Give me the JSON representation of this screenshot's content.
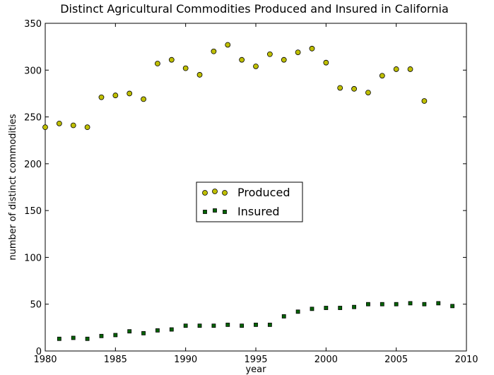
{
  "chart_data": {
    "type": "scatter",
    "title": "Distinct Agricultural Commodities Produced and Insured in California",
    "xlabel": "year",
    "ylabel": "number of distinct commodities",
    "xlim": [
      1980,
      2010
    ],
    "xticks": [
      1980,
      1985,
      1990,
      1995,
      2000,
      2005,
      2010
    ],
    "ylim": [
      0,
      350
    ],
    "yticks": [
      0,
      50,
      100,
      150,
      200,
      250,
      300,
      350
    ],
    "legend": "center",
    "series": [
      {
        "name": "Produced",
        "color": "#bfbf00",
        "marker": "circle",
        "x": [
          1980,
          1981,
          1982,
          1983,
          1984,
          1985,
          1986,
          1987,
          1988,
          1989,
          1990,
          1991,
          1992,
          1993,
          1994,
          1995,
          1996,
          1997,
          1998,
          1999,
          2000,
          2001,
          2002,
          2003,
          2004,
          2005,
          2006,
          2007
        ],
        "values": [
          239,
          243,
          241,
          239,
          271,
          273,
          275,
          269,
          307,
          311,
          302,
          295,
          320,
          327,
          311,
          304,
          317,
          311,
          319,
          323,
          308,
          281,
          280,
          276,
          294,
          301,
          301,
          267
        ]
      },
      {
        "name": "Insured",
        "color": "#006400",
        "marker": "square",
        "x": [
          1981,
          1982,
          1983,
          1984,
          1985,
          1986,
          1987,
          1988,
          1989,
          1990,
          1991,
          1992,
          1993,
          1994,
          1995,
          1996,
          1997,
          1998,
          1999,
          2000,
          2001,
          2002,
          2003,
          2004,
          2005,
          2006,
          2007,
          2008,
          2009
        ],
        "values": [
          13,
          14,
          13,
          16,
          17,
          21,
          19,
          22,
          23,
          27,
          27,
          27,
          28,
          27,
          28,
          28,
          37,
          42,
          45,
          46,
          46,
          47,
          50,
          50,
          50,
          51,
          50,
          51,
          48
        ]
      }
    ]
  }
}
